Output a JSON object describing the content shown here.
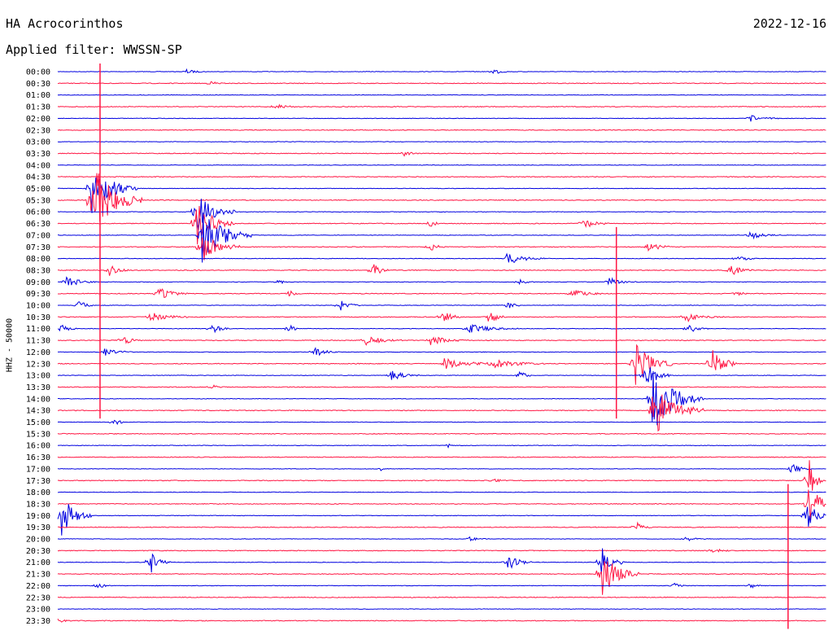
{
  "header": {
    "station": "HA Acrocorinthos",
    "date": "2022-12-16",
    "filter": "Applied filter: WWSSN-SP"
  },
  "axis_label": "HHZ - 50000",
  "colors": {
    "even_row": "#0000e0",
    "odd_row": "#ff1744",
    "text": "#000000"
  },
  "chart_data": {
    "type": "helicorder",
    "ylabel": "HHZ - 50000",
    "row_labels": [
      "00:00",
      "00:30",
      "01:00",
      "01:30",
      "02:00",
      "02:30",
      "03:00",
      "03:30",
      "04:00",
      "04:30",
      "05:00",
      "05:30",
      "06:00",
      "06:30",
      "07:00",
      "07:30",
      "08:00",
      "08:30",
      "09:00",
      "09:30",
      "10:00",
      "10:30",
      "11:00",
      "11:30",
      "12:00",
      "12:30",
      "13:00",
      "13:30",
      "14:00",
      "14:30",
      "15:00",
      "15:30",
      "16:00",
      "16:30",
      "17:00",
      "17:30",
      "18:00",
      "18:30",
      "19:00",
      "19:30",
      "20:00",
      "20:30",
      "21:00",
      "21:30",
      "22:00",
      "22:30",
      "23:00",
      "23:30"
    ],
    "row_colors": [
      "blue",
      "red"
    ],
    "minutes_per_row": 30,
    "events": [
      {
        "row": 0,
        "minute": 5.0,
        "amp": 0.3,
        "dur": 0.8
      },
      {
        "row": 0,
        "minute": 17.0,
        "amp": 0.5,
        "dur": 0.6
      },
      {
        "row": 1,
        "minute": 6.0,
        "amp": 0.4,
        "dur": 0.4
      },
      {
        "row": 3,
        "minute": 8.5,
        "amp": 0.5,
        "dur": 0.8
      },
      {
        "row": 4,
        "minute": 27.0,
        "amp": 0.5,
        "dur": 1.2
      },
      {
        "row": 7,
        "minute": 13.5,
        "amp": 0.4,
        "dur": 0.6
      },
      {
        "row": 10,
        "minute": 1.3,
        "amp": 3.5,
        "dur": 1.8
      },
      {
        "row": 11,
        "minute": 1.3,
        "amp": 5.0,
        "dur": 2.0
      },
      {
        "row": 12,
        "minute": 5.4,
        "amp": 3.0,
        "dur": 1.5
      },
      {
        "row": 13,
        "minute": 5.4,
        "amp": 3.0,
        "dur": 1.5
      },
      {
        "row": 13,
        "minute": 14.5,
        "amp": 0.8,
        "dur": 0.4
      },
      {
        "row": 13,
        "minute": 20.5,
        "amp": 0.7,
        "dur": 1.0
      },
      {
        "row": 14,
        "minute": 5.6,
        "amp": 3.5,
        "dur": 2.0
      },
      {
        "row": 14,
        "minute": 27.0,
        "amp": 0.5,
        "dur": 1.2
      },
      {
        "row": 15,
        "minute": 5.6,
        "amp": 2.0,
        "dur": 1.5
      },
      {
        "row": 15,
        "minute": 14.5,
        "amp": 0.7,
        "dur": 0.6
      },
      {
        "row": 15,
        "minute": 23.0,
        "amp": 0.7,
        "dur": 1.0
      },
      {
        "row": 16,
        "minute": 17.5,
        "amp": 0.8,
        "dur": 1.5
      },
      {
        "row": 16,
        "minute": 26.5,
        "amp": 0.5,
        "dur": 0.8
      },
      {
        "row": 17,
        "minute": 2.0,
        "amp": 0.8,
        "dur": 0.8
      },
      {
        "row": 17,
        "minute": 12.3,
        "amp": 1.2,
        "dur": 0.6
      },
      {
        "row": 17,
        "minute": 26.2,
        "amp": 0.8,
        "dur": 1.0
      },
      {
        "row": 18,
        "minute": 0.3,
        "amp": 0.8,
        "dur": 1.2
      },
      {
        "row": 18,
        "minute": 8.6,
        "amp": 0.5,
        "dur": 0.4
      },
      {
        "row": 18,
        "minute": 18.0,
        "amp": 0.5,
        "dur": 0.6
      },
      {
        "row": 18,
        "minute": 21.5,
        "amp": 0.6,
        "dur": 1.2
      },
      {
        "row": 19,
        "minute": 3.9,
        "amp": 0.8,
        "dur": 1.2
      },
      {
        "row": 19,
        "minute": 9.0,
        "amp": 0.5,
        "dur": 0.5
      },
      {
        "row": 19,
        "minute": 20.0,
        "amp": 0.7,
        "dur": 1.2
      },
      {
        "row": 19,
        "minute": 26.5,
        "amp": 0.6,
        "dur": 0.4
      },
      {
        "row": 20,
        "minute": 0.8,
        "amp": 0.8,
        "dur": 0.6
      },
      {
        "row": 20,
        "minute": 11.0,
        "amp": 0.7,
        "dur": 0.8
      },
      {
        "row": 20,
        "minute": 17.5,
        "amp": 0.6,
        "dur": 0.6
      },
      {
        "row": 21,
        "minute": 3.6,
        "amp": 0.6,
        "dur": 1.5
      },
      {
        "row": 21,
        "minute": 15.0,
        "amp": 0.9,
        "dur": 0.8
      },
      {
        "row": 21,
        "minute": 16.8,
        "amp": 0.9,
        "dur": 0.8
      },
      {
        "row": 21,
        "minute": 24.5,
        "amp": 0.6,
        "dur": 1.5
      },
      {
        "row": 22,
        "minute": 0.1,
        "amp": 0.6,
        "dur": 0.8
      },
      {
        "row": 22,
        "minute": 6.0,
        "amp": 0.6,
        "dur": 0.8
      },
      {
        "row": 22,
        "minute": 9.0,
        "amp": 0.8,
        "dur": 0.4
      },
      {
        "row": 22,
        "minute": 16.0,
        "amp": 0.6,
        "dur": 2.0
      },
      {
        "row": 22,
        "minute": 24.6,
        "amp": 0.6,
        "dur": 0.8
      },
      {
        "row": 23,
        "minute": 2.5,
        "amp": 0.7,
        "dur": 0.8
      },
      {
        "row": 23,
        "minute": 12.0,
        "amp": 0.6,
        "dur": 1.5
      },
      {
        "row": 23,
        "minute": 14.5,
        "amp": 0.6,
        "dur": 1.5
      },
      {
        "row": 24,
        "minute": 1.8,
        "amp": 0.5,
        "dur": 1.2
      },
      {
        "row": 24,
        "minute": 10.0,
        "amp": 0.6,
        "dur": 1.0
      },
      {
        "row": 25,
        "minute": 15.0,
        "amp": 0.7,
        "dur": 2.5
      },
      {
        "row": 25,
        "minute": 17.0,
        "amp": 0.6,
        "dur": 2.0
      },
      {
        "row": 25,
        "minute": 22.5,
        "amp": 3.0,
        "dur": 1.5
      },
      {
        "row": 25,
        "minute": 25.5,
        "amp": 2.5,
        "dur": 1.0
      },
      {
        "row": 26,
        "minute": 13.0,
        "amp": 0.7,
        "dur": 1.2
      },
      {
        "row": 26,
        "minute": 18.0,
        "amp": 0.9,
        "dur": 0.5
      },
      {
        "row": 26,
        "minute": 22.9,
        "amp": 2.0,
        "dur": 1.0
      },
      {
        "row": 27,
        "minute": 6.0,
        "amp": 0.4,
        "dur": 0.4
      },
      {
        "row": 28,
        "minute": 23.2,
        "amp": 4.5,
        "dur": 2.0
      },
      {
        "row": 29,
        "minute": 23.2,
        "amp": 3.5,
        "dur": 2.0
      },
      {
        "row": 30,
        "minute": 2.2,
        "amp": 0.4,
        "dur": 0.6
      },
      {
        "row": 32,
        "minute": 15.2,
        "amp": 0.3,
        "dur": 0.3
      },
      {
        "row": 34,
        "minute": 12.6,
        "amp": 0.3,
        "dur": 0.3
      },
      {
        "row": 34,
        "minute": 28.6,
        "amp": 0.8,
        "dur": 0.8
      },
      {
        "row": 35,
        "minute": 17.0,
        "amp": 0.3,
        "dur": 0.6
      },
      {
        "row": 35,
        "minute": 29.3,
        "amp": 3.0,
        "dur": 0.6
      },
      {
        "row": 37,
        "minute": 29.3,
        "amp": 3.0,
        "dur": 1.0
      },
      {
        "row": 38,
        "minute": 0.1,
        "amp": 3.0,
        "dur": 1.2
      },
      {
        "row": 38,
        "minute": 29.2,
        "amp": 2.5,
        "dur": 0.8
      },
      {
        "row": 39,
        "minute": 22.6,
        "amp": 0.6,
        "dur": 0.6
      },
      {
        "row": 40,
        "minute": 16.0,
        "amp": 0.3,
        "dur": 0.8
      },
      {
        "row": 40,
        "minute": 24.5,
        "amp": 0.3,
        "dur": 1.0
      },
      {
        "row": 41,
        "minute": 25.5,
        "amp": 0.4,
        "dur": 0.8
      },
      {
        "row": 42,
        "minute": 3.6,
        "amp": 1.5,
        "dur": 0.8
      },
      {
        "row": 42,
        "minute": 17.5,
        "amp": 1.2,
        "dur": 1.0
      },
      {
        "row": 42,
        "minute": 21.2,
        "amp": 2.0,
        "dur": 1.0
      },
      {
        "row": 43,
        "minute": 21.2,
        "amp": 3.0,
        "dur": 1.5
      },
      {
        "row": 44,
        "minute": 1.5,
        "amp": 0.5,
        "dur": 0.6
      },
      {
        "row": 44,
        "minute": 24.0,
        "amp": 0.4,
        "dur": 0.5
      },
      {
        "row": 44,
        "minute": 27.0,
        "amp": 0.4,
        "dur": 0.5
      },
      {
        "row": 47,
        "minute": 0.0,
        "amp": 0.4,
        "dur": 0.4
      }
    ],
    "spikes": [
      {
        "start_row": 0,
        "end_row": 29,
        "minute": 1.65
      },
      {
        "start_row": 14,
        "end_row": 29,
        "minute": 21.8
      },
      {
        "start_row": 36,
        "end_row": 47,
        "minute": 28.5
      }
    ]
  }
}
